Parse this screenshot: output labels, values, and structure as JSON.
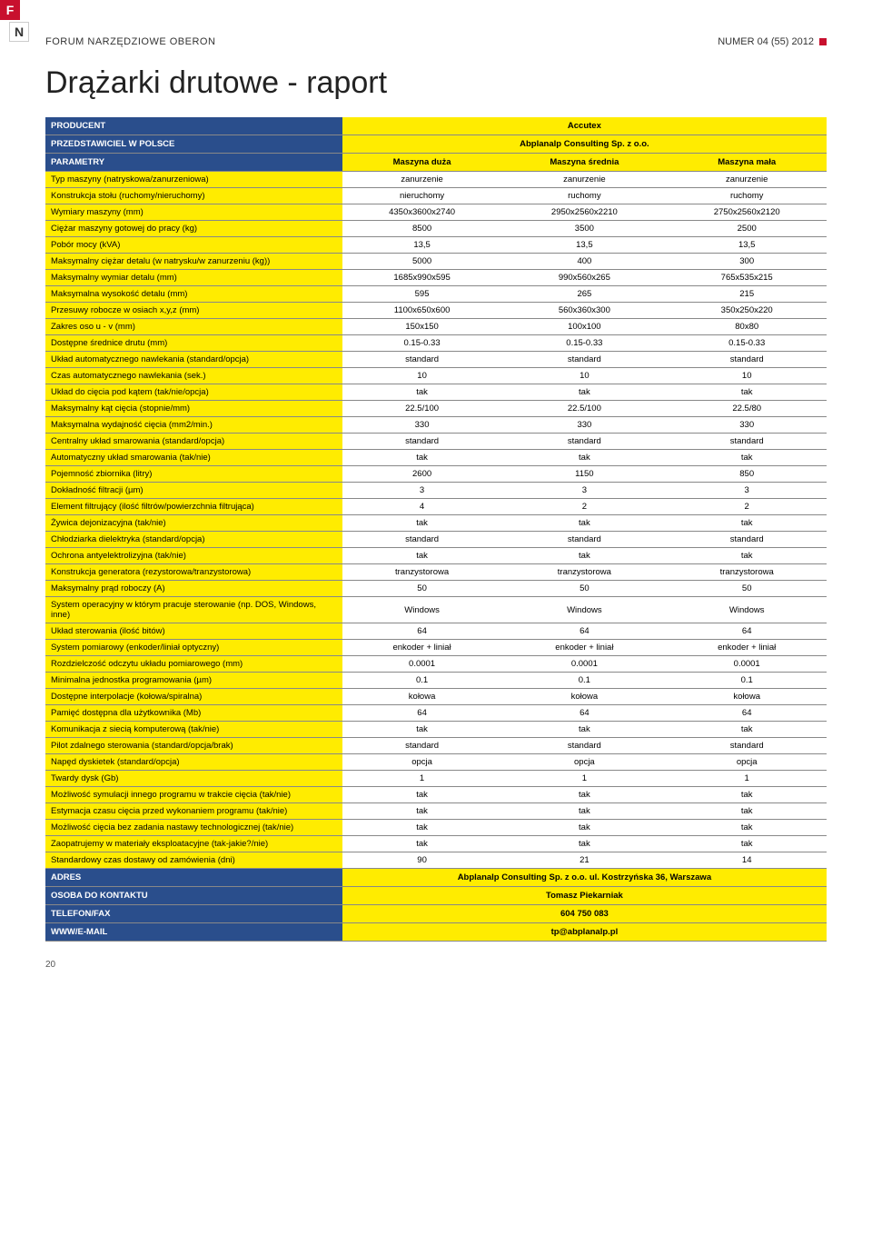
{
  "header": {
    "left": "FORUM NARZĘDZIOWE OBERON",
    "right": "NUMER 04 (55) 2012",
    "fn_f": "F",
    "fn_n": "N"
  },
  "title": "Drążarki drutowe - raport",
  "blue_header": {
    "producent_label": "PRODUCENT",
    "producent_value": "Accutex",
    "przedstawiciel_label": "PRZEDSTAWICIEL W POLSCE",
    "przedstawiciel_value": "Abplanalp Consulting Sp. z o.o.",
    "parametry_label": "PARAMETRY",
    "col1": "Maszyna duża",
    "col2": "Maszyna średnia",
    "col3": "Maszyna mała"
  },
  "rows": [
    {
      "label": "Typ maszyny (natryskowa/zanurzeniowa)",
      "v1": "zanurzenie",
      "v2": "zanurzenie",
      "v3": "zanurzenie"
    },
    {
      "label": "Konstrukcja stołu (ruchomy/nieruchomy)",
      "v1": "nieruchomy",
      "v2": "ruchomy",
      "v3": "ruchomy"
    },
    {
      "label": "Wymiary maszyny (mm)",
      "v1": "4350x3600x2740",
      "v2": "2950x2560x2210",
      "v3": "2750x2560x2120"
    },
    {
      "label": "Ciężar maszyny gotowej do pracy (kg)",
      "v1": "8500",
      "v2": "3500",
      "v3": "2500"
    },
    {
      "label": "Pobór mocy (kVA)",
      "v1": "13,5",
      "v2": "13,5",
      "v3": "13,5"
    },
    {
      "label": "Maksymalny ciężar detalu (w natrysku/w zanurzeniu (kg))",
      "v1": "5000",
      "v2": "400",
      "v3": "300"
    },
    {
      "label": "Maksymalny wymiar detalu (mm)",
      "v1": "1685x990x595",
      "v2": "990x560x265",
      "v3": "765x535x215"
    },
    {
      "label": "Maksymalna wysokość detalu (mm)",
      "v1": "595",
      "v2": "265",
      "v3": "215"
    },
    {
      "label": "Przesuwy robocze w osiach x,y,z (mm)",
      "v1": "1100x650x600",
      "v2": "560x360x300",
      "v3": "350x250x220"
    },
    {
      "label": "Zakres oso u - v (mm)",
      "v1": "150x150",
      "v2": "100x100",
      "v3": "80x80"
    },
    {
      "label": "Dostępne średnice drutu (mm)",
      "v1": "0.15-0.33",
      "v2": "0.15-0.33",
      "v3": "0.15-0.33"
    },
    {
      "label": "Układ automatycznego nawlekania (standard/opcja)",
      "v1": "standard",
      "v2": "standard",
      "v3": "standard"
    },
    {
      "label": "Czas automatycznego nawlekania (sek.)",
      "v1": "10",
      "v2": "10",
      "v3": "10"
    },
    {
      "label": "Układ do cięcia pod kątem (tak/nie/opcja)",
      "v1": "tak",
      "v2": "tak",
      "v3": "tak"
    },
    {
      "label": "Maksymalny kąt cięcia (stopnie/mm)",
      "v1": "22.5/100",
      "v2": "22.5/100",
      "v3": "22.5/80"
    },
    {
      "label": "Maksymalna wydajność cięcia (mm2/min.)",
      "v1": "330",
      "v2": "330",
      "v3": "330"
    },
    {
      "label": "Centralny układ smarowania (standard/opcja)",
      "v1": "standard",
      "v2": "standard",
      "v3": "standard"
    },
    {
      "label": "Automatyczny układ smarowania (tak/nie)",
      "v1": "tak",
      "v2": "tak",
      "v3": "tak"
    },
    {
      "label": "Pojemność zbiornika (litry)",
      "v1": "2600",
      "v2": "1150",
      "v3": "850"
    },
    {
      "label": "Dokładność filtracji (µm)",
      "v1": "3",
      "v2": "3",
      "v3": "3"
    },
    {
      "label": "Element filtrujący (ilość filtrów/powierzchnia filtrująca)",
      "v1": "4",
      "v2": "2",
      "v3": "2"
    },
    {
      "label": "Żywica dejonizacyjna (tak/nie)",
      "v1": "tak",
      "v2": "tak",
      "v3": "tak"
    },
    {
      "label": "Chłodziarka dielektryka (standard/opcja)",
      "v1": "standard",
      "v2": "standard",
      "v3": "standard"
    },
    {
      "label": "Ochrona antyelektrolizyjna (tak/nie)",
      "v1": "tak",
      "v2": "tak",
      "v3": "tak"
    },
    {
      "label": "Konstrukcja generatora (rezystorowa/tranzystorowa)",
      "v1": "tranzystorowa",
      "v2": "tranzystorowa",
      "v3": "tranzystorowa"
    },
    {
      "label": "Maksymalny prąd roboczy (A)",
      "v1": "50",
      "v2": "50",
      "v3": "50"
    },
    {
      "label": "System operacyjny w którym pracuje sterowanie (np. DOS, Windows, inne)",
      "v1": "Windows",
      "v2": "Windows",
      "v3": "Windows"
    },
    {
      "label": "Układ sterowania (ilość bitów)",
      "v1": "64",
      "v2": "64",
      "v3": "64"
    },
    {
      "label": "System pomiarowy (enkoder/liniał optyczny)",
      "v1": "enkoder + liniał",
      "v2": "enkoder + liniał",
      "v3": "enkoder + liniał"
    },
    {
      "label": "Rozdzielczość odczytu układu pomiarowego (mm)",
      "v1": "0.0001",
      "v2": "0.0001",
      "v3": "0.0001"
    },
    {
      "label": "Minimalna jednostka programowania (µm)",
      "v1": "0.1",
      "v2": "0.1",
      "v3": "0.1"
    },
    {
      "label": "Dostępne interpolacje (kołowa/spiralna)",
      "v1": "kołowa",
      "v2": "kołowa",
      "v3": "kołowa"
    },
    {
      "label": "Pamięć dostępna dla użytkownika (Mb)",
      "v1": "64",
      "v2": "64",
      "v3": "64"
    },
    {
      "label": "Komunikacja z siecią komputerową (tak/nie)",
      "v1": "tak",
      "v2": "tak",
      "v3": "tak"
    },
    {
      "label": "Pilot zdalnego sterowania (standard/opcja/brak)",
      "v1": "standard",
      "v2": "standard",
      "v3": "standard"
    },
    {
      "label": "Napęd dyskietek (standard/opcja)",
      "v1": "opcja",
      "v2": "opcja",
      "v3": "opcja"
    },
    {
      "label": "Twardy dysk (Gb)",
      "v1": "1",
      "v2": "1",
      "v3": "1"
    },
    {
      "label": "Możliwość symulacji innego programu w trakcie cięcia (tak/nie)",
      "v1": "tak",
      "v2": "tak",
      "v3": "tak"
    },
    {
      "label": "Estymacja czasu cięcia przed wykonaniem programu (tak/nie)",
      "v1": "tak",
      "v2": "tak",
      "v3": "tak"
    },
    {
      "label": "Możliwość cięcia bez zadania nastawy technologicznej (tak/nie)",
      "v1": "tak",
      "v2": "tak",
      "v3": "tak"
    },
    {
      "label": "Zaopatrujemy w materiały eksploatacyjne (tak-jakie?/nie)",
      "v1": "tak",
      "v2": "tak",
      "v3": "tak"
    },
    {
      "label": "Standardowy czas dostawy od zamówienia (dni)",
      "v1": "90",
      "v2": "21",
      "v3": "14"
    }
  ],
  "footer": {
    "adres_label": "ADRES",
    "adres_value": "Abplanalp Consulting Sp. z o.o. ul. Kostrzyńska 36, Warszawa",
    "osoba_label": "OSOBA DO KONTAKTU",
    "osoba_value": "Tomasz Piekarniak",
    "telefon_label": "TELEFON/FAX",
    "telefon_value": "604 750 083",
    "www_label": "WWW/E-MAIL",
    "www_value": "tp@abplanalp.pl"
  },
  "page_number": "20"
}
